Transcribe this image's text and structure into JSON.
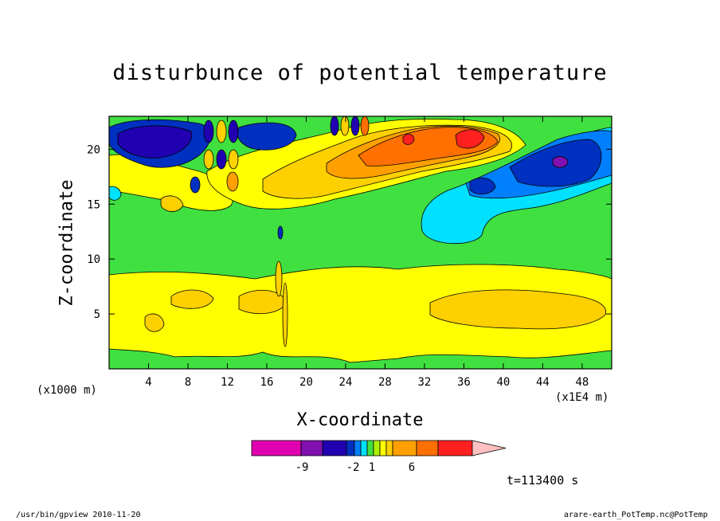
{
  "chart_data": {
    "type": "heatmap",
    "title": "disturbunce of potential temperature",
    "xlabel": "X-coordinate",
    "ylabel": "Z-coordinate",
    "x_unit_left": "(x1000 m)",
    "x_unit_right": "(x1E4 m)",
    "xlim": [
      0,
      51
    ],
    "ylim": [
      0,
      23
    ],
    "x_ticks": [
      4,
      8,
      12,
      16,
      20,
      24,
      28,
      32,
      36,
      40,
      44,
      48
    ],
    "y_ticks": [
      5,
      10,
      15,
      20
    ],
    "colorbar": {
      "colors": [
        "#e000b0",
        "#8010b0",
        "#2000b0",
        "#0030c0",
        "#0080ff",
        "#00e0ff",
        "#40e040",
        "#b0f000",
        "#ffff00",
        "#ffd000",
        "#ffa000",
        "#ff7000",
        "#ff2020",
        "#ff8080",
        "#ffc0c0"
      ],
      "tick_labels": [
        "-9",
        "-2",
        "1",
        "6"
      ]
    },
    "annotation_time": "t=113400 s",
    "footer_left": "/usr/bin/gpview   2010-11-20",
    "footer_right": "arare-earth_PotTemp.nc@PotTemp"
  }
}
